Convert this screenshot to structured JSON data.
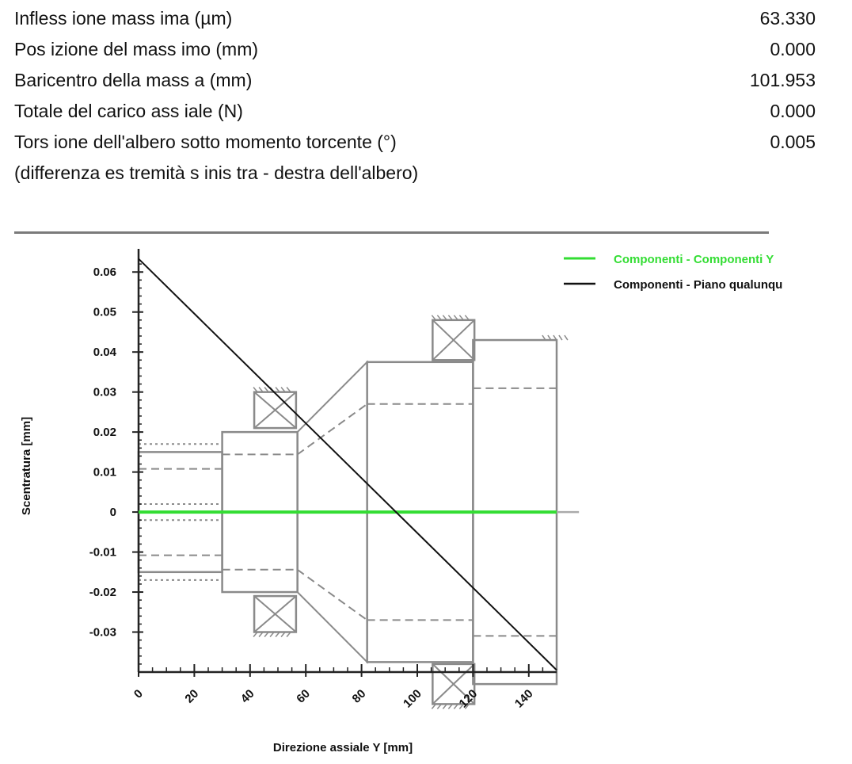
{
  "results": [
    {
      "label": "Infless ione mass ima (µm)",
      "value": "63.330"
    },
    {
      "label": "Pos izione del mass imo (mm)",
      "value": "0.000"
    },
    {
      "label": "Baricentro della mass a (mm)",
      "value": "101.953"
    },
    {
      "label": "Totale del carico ass iale (N)",
      "value": "0.000"
    },
    {
      "label": "Tors ione dell'albero sotto momento torcente (°)",
      "value": "0.005"
    },
    {
      "label": "(differenza es tremità s inis tra - destra dell'albero)",
      "value": ""
    }
  ],
  "chart_data": {
    "type": "line",
    "xlabel": "Direzione assiale Y [mm]",
    "ylabel": "Scentratura [mm]",
    "xlim": [
      0,
      150
    ],
    "ylim": [
      -0.04,
      0.065
    ],
    "x_ticks": [
      0,
      20,
      40,
      60,
      80,
      100,
      120,
      140
    ],
    "y_ticks": [
      0.06,
      0.05,
      0.04,
      0.03,
      0.02,
      0.01,
      0,
      -0.01,
      -0.02,
      -0.03
    ],
    "y_tick_labels": [
      "0.06",
      "0.05",
      "0.04",
      "0.03",
      "0.02",
      "0.01",
      "0",
      "-0.01",
      "-0.02",
      "-0.03"
    ],
    "legend_position": "top-right",
    "series": [
      {
        "name": "Componenti - Componenti Y",
        "color": "#33dd33",
        "x": [
          0,
          150
        ],
        "y": [
          0,
          0
        ]
      },
      {
        "name": "Componenti - Piano qualunqu",
        "color": "#111111",
        "x": [
          0,
          150
        ],
        "y": [
          0.0633,
          -0.0395
        ]
      }
    ],
    "shaft_sketch": {
      "color": "#8a8a8a",
      "sections": [
        {
          "x0": 0,
          "x1": 30,
          "r": 0.015,
          "shape": "cylinder"
        },
        {
          "x0": 30,
          "x1": 57,
          "r": 0.02,
          "shape": "cylinder"
        },
        {
          "x0": 57,
          "x1": 82,
          "r0": 0.02,
          "r1": 0.0375,
          "shape": "cone"
        },
        {
          "x0": 82,
          "x1": 120,
          "r": 0.0375,
          "shape": "cylinder"
        },
        {
          "x0": 120,
          "x1": 150,
          "r": 0.043,
          "shape": "cylinder"
        }
      ],
      "bearings": [
        {
          "x": 49,
          "r_in": 0.021,
          "r_out": 0.03
        },
        {
          "x": 113,
          "r_in": 0.038,
          "r_out": 0.048
        }
      ]
    }
  }
}
